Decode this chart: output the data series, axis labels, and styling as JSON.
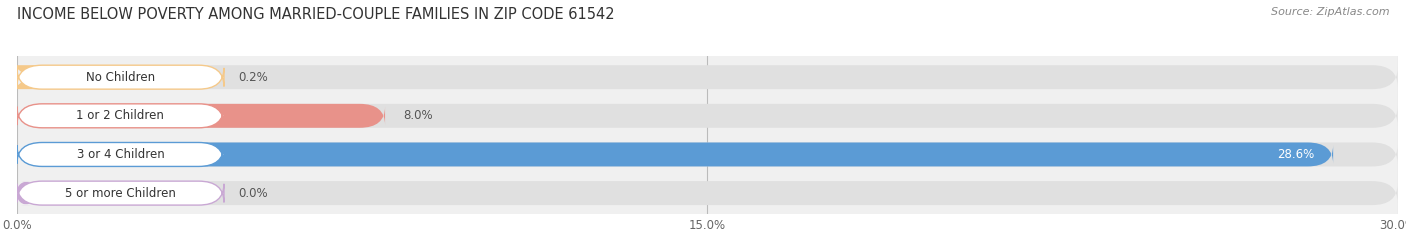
{
  "title": "INCOME BELOW POVERTY AMONG MARRIED-COUPLE FAMILIES IN ZIP CODE 61542",
  "source": "Source: ZipAtlas.com",
  "categories": [
    "No Children",
    "1 or 2 Children",
    "3 or 4 Children",
    "5 or more Children"
  ],
  "values": [
    0.2,
    8.0,
    28.6,
    0.0
  ],
  "bar_colors": [
    "#f5c98a",
    "#e8928a",
    "#5b9bd5",
    "#c9a8d4"
  ],
  "bar_bg_color": "#e0e0e0",
  "label_bg_color": "#ffffff",
  "xlim": [
    0,
    30.0
  ],
  "xticks": [
    0.0,
    15.0,
    30.0
  ],
  "xtick_labels": [
    "0.0%",
    "15.0%",
    "30.0%"
  ],
  "title_fontsize": 10.5,
  "source_fontsize": 8,
  "bar_label_fontsize": 8.5,
  "value_label_fontsize": 8.5,
  "tick_fontsize": 8.5,
  "background_color": "#ffffff",
  "plot_bg_color": "#f0f0f0"
}
